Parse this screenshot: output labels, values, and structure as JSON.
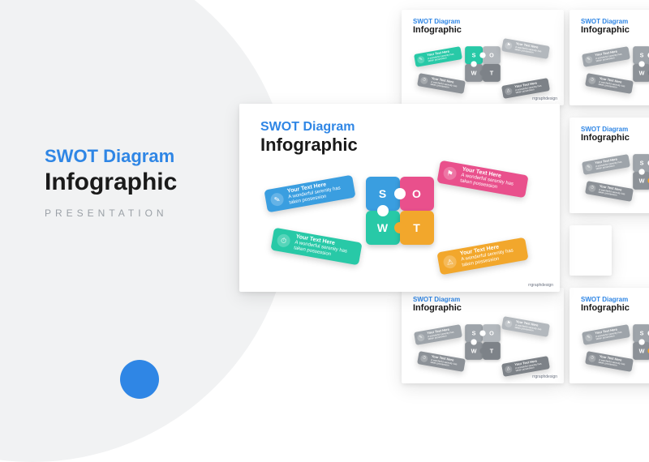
{
  "background": {
    "circle_color": "#f1f2f3",
    "page_color": "#ffffff",
    "accent_dot_color": "#2f86e5"
  },
  "left_panel": {
    "line1": "SWOT Diagram",
    "line1_color": "#2f86e5",
    "line2": "Infographic",
    "line2_color": "#1a1a1a",
    "line3": "PRESENTATION",
    "line3_color": "#9aa0a6"
  },
  "slide_title": {
    "line1": "SWOT Diagram",
    "line1_color": "#2f86e5",
    "line2": "Infographic"
  },
  "watermark": "rrgraphdesign",
  "swot": {
    "s": {
      "letter": "S",
      "heading": "Your Text Here",
      "body": "A wonderful serenity has taken possession"
    },
    "w": {
      "letter": "W",
      "heading": "Your Text Here",
      "body": "A wonderful serenity has taken possession"
    },
    "o": {
      "letter": "O",
      "heading": "Your Text Here",
      "body": "A wonderful serenity has taken possession"
    },
    "t": {
      "letter": "T",
      "heading": "Your Text Here",
      "body": "A wonderful serenity has taken possession"
    }
  },
  "palettes": {
    "grey": {
      "s": "#9ea4aa",
      "w": "#8c9197",
      "o": "#b3b8bd",
      "t": "#7d8288"
    },
    "sw_color": {
      "s": "#28c9a7",
      "w": "#8c9197",
      "o": "#b3b8bd",
      "t": "#7d8288"
    },
    "ot_color": {
      "s": "#9ea4aa",
      "w": "#8c9197",
      "o": "#e9508c",
      "t": "#f2a72c"
    },
    "full": {
      "s": "#3a9ee0",
      "w": "#28c9a7",
      "o": "#e9508c",
      "t": "#f2a72c"
    }
  },
  "slides": [
    {
      "id": "s1",
      "palette": "sw_color"
    },
    {
      "id": "s2",
      "palette": "grey"
    },
    {
      "id": "s5",
      "palette": "ot_color"
    },
    {
      "id": "main",
      "palette": "full"
    },
    {
      "id": "s3",
      "palette": "grey"
    },
    {
      "id": "s4",
      "palette": "ot_color"
    }
  ],
  "icons": {
    "s": "✎",
    "w": "⏱",
    "o": "⚑",
    "t": "⚠"
  }
}
